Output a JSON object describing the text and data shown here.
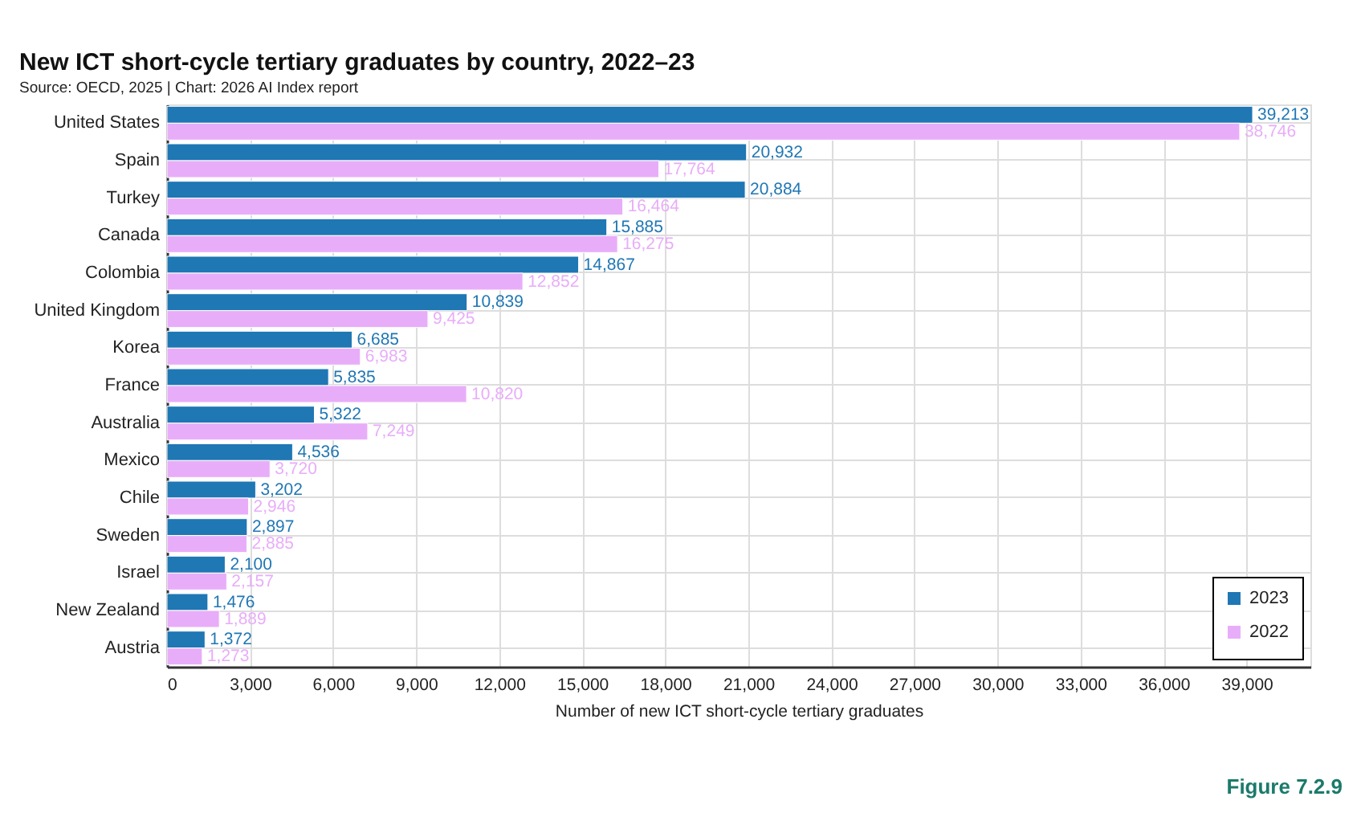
{
  "chart_data": {
    "type": "bar",
    "orientation": "horizontal",
    "title": "New ICT short-cycle tertiary graduates by country, 2022–23",
    "annotations": [
      "Source: OECD, 2025 | Chart: 2026 AI Index report",
      "Figure 7.2.9"
    ],
    "xlabel": "Number of new ICT short-cycle tertiary graduates",
    "categories": [
      "United States",
      "Spain",
      "Turkey",
      "Canada",
      "Colombia",
      "United Kingdom",
      "Korea",
      "France",
      "Australia",
      "Mexico",
      "Chile",
      "Sweden",
      "Israel",
      "New Zealand",
      "Austria"
    ],
    "series": [
      {
        "name": "2023",
        "color": "#1f77b4",
        "values": [
          39213,
          20932,
          20884,
          15885,
          14867,
          10839,
          6685,
          5835,
          5322,
          4536,
          3202,
          2897,
          2100,
          1476,
          1372
        ],
        "value_labels": [
          "39,213",
          "20,932",
          "20,884",
          "15,885",
          "14,867",
          "10,839",
          "6,685",
          "5,835",
          "5,322",
          "4,536",
          "3,202",
          "2,897",
          "2,100",
          "1,476",
          "1,372"
        ]
      },
      {
        "name": "2022",
        "color": "#e8adf9",
        "values": [
          38746,
          17764,
          16464,
          16275,
          12852,
          9425,
          6983,
          10820,
          7249,
          3720,
          2946,
          2885,
          2157,
          1889,
          1273
        ],
        "value_labels": [
          "38,746",
          "17,764",
          "16,464",
          "16,275",
          "12,852",
          "9,425",
          "6,983",
          "10,820",
          "7,249",
          "3,720",
          "2,946",
          "2,885",
          "2,157",
          "1,889",
          "1,273"
        ]
      }
    ],
    "xlim": [
      0,
      41300
    ],
    "xticks": [
      0,
      {
        "value": 3000,
        "label": "3,000"
      },
      {
        "value": 6000,
        "label": "6,000"
      },
      {
        "value": 9000,
        "label": "9,000"
      },
      {
        "value": 12000,
        "label": "12,000"
      },
      {
        "value": 15000,
        "label": "15,000"
      },
      {
        "value": 18000,
        "label": "18,000"
      },
      {
        "value": 21000,
        "label": "21,000"
      },
      {
        "value": 24000,
        "label": "24,000"
      },
      {
        "value": 27000,
        "label": "27,000"
      },
      {
        "value": 30000,
        "label": "30,000"
      },
      {
        "value": 33000,
        "label": "33,000"
      },
      {
        "value": 36000,
        "label": "36,000"
      },
      {
        "value": 39000,
        "label": "39,000"
      }
    ],
    "grid": true,
    "legend": "bottom right"
  }
}
